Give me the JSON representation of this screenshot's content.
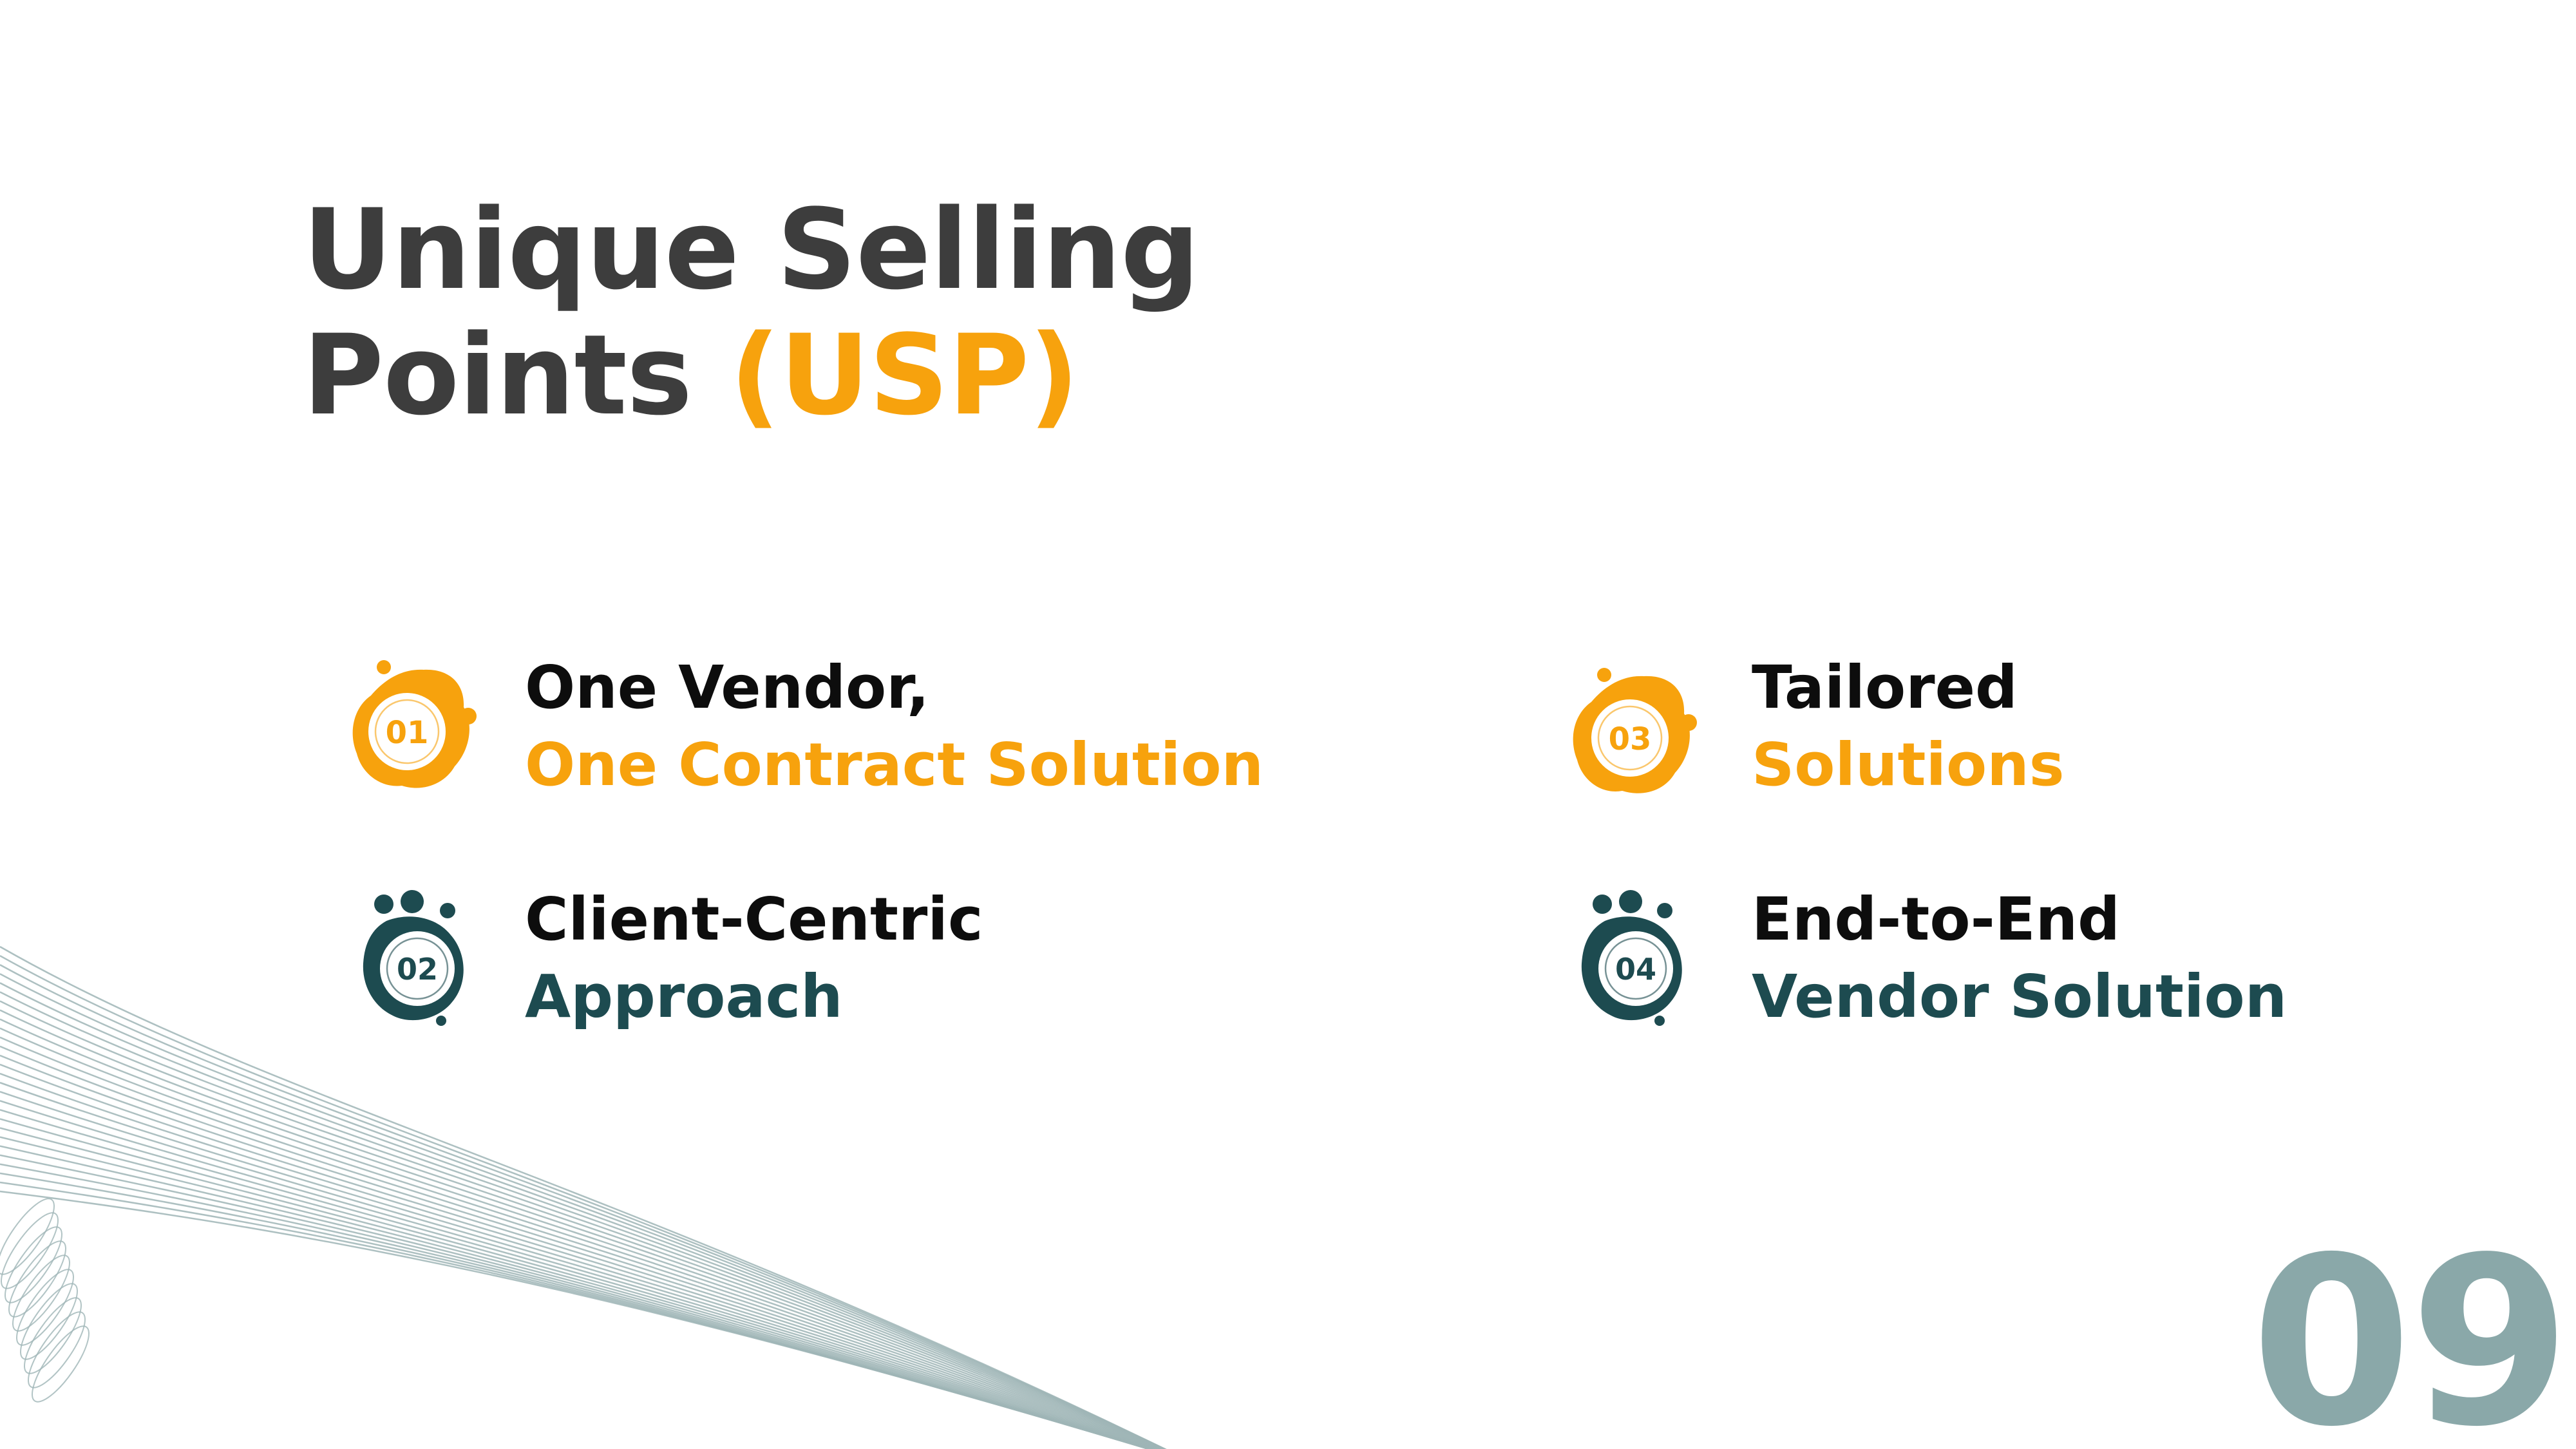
{
  "title": {
    "line1": "Unique Selling",
    "line2_prefix": "Points",
    "line2_accent": "(USP)"
  },
  "usps": [
    {
      "number": "01",
      "line1": "One Vendor,",
      "line2": "One Contract Solution",
      "color": "#f7a20d"
    },
    {
      "number": "02",
      "line1": "Client-Centric",
      "line2": "Approach",
      "color": "#1d4b50"
    },
    {
      "number": "03",
      "line1": "Tailored",
      "line2": "Solutions",
      "color": "#f7a20d"
    },
    {
      "number": "04",
      "line1": "End-to-End",
      "line2": "Vendor Solution",
      "color": "#1d4b50"
    }
  ],
  "page_number": "09",
  "colors": {
    "title": "#3d3d3d",
    "accent_orange": "#f7a20d",
    "accent_teal": "#1d4b50",
    "page_number": "#8aa8a9",
    "wave_lines": "#9fb5b6"
  }
}
